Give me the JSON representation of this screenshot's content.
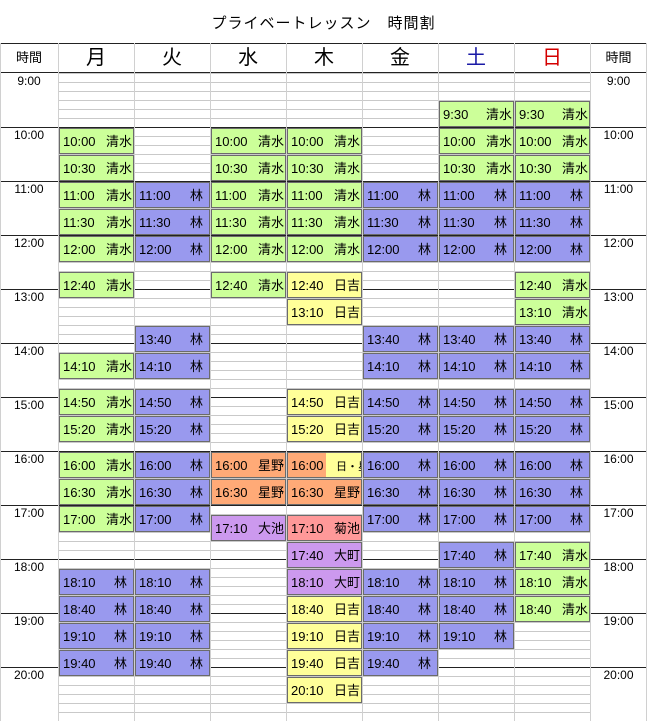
{
  "title": "プライベートレッスン　時間割",
  "time_header": "時間",
  "days": [
    {
      "label": "月",
      "color": "#000000"
    },
    {
      "label": "火",
      "color": "#000000"
    },
    {
      "label": "水",
      "color": "#000000"
    },
    {
      "label": "木",
      "color": "#000000"
    },
    {
      "label": "金",
      "color": "#000000"
    },
    {
      "label": "土",
      "color": "#1a1aa6"
    },
    {
      "label": "日",
      "color": "#d40000"
    }
  ],
  "hours": [
    "9:00",
    "10:00",
    "11:00",
    "12:00",
    "13:00",
    "14:00",
    "15:00",
    "16:00",
    "17:00",
    "18:00",
    "19:00",
    "20:00"
  ],
  "colors": {
    "green": "#ccff99",
    "blue": "#9999ee",
    "yellow": "#ffff99",
    "orange": "#ffaa77",
    "purple": "#cc99ee",
    "pink": "#ff9999"
  },
  "lessons": [
    {
      "day": 0,
      "time": "10:00",
      "teacher": "清水",
      "color": "green"
    },
    {
      "day": 0,
      "time": "10:30",
      "teacher": "清水",
      "color": "green"
    },
    {
      "day": 0,
      "time": "11:00",
      "teacher": "清水",
      "color": "green"
    },
    {
      "day": 0,
      "time": "11:30",
      "teacher": "清水",
      "color": "green"
    },
    {
      "day": 0,
      "time": "12:00",
      "teacher": "清水",
      "color": "green"
    },
    {
      "day": 0,
      "time": "12:40",
      "teacher": "清水",
      "color": "green"
    },
    {
      "day": 0,
      "time": "14:10",
      "teacher": "清水",
      "color": "green"
    },
    {
      "day": 0,
      "time": "14:50",
      "teacher": "清水",
      "color": "green"
    },
    {
      "day": 0,
      "time": "15:20",
      "teacher": "清水",
      "color": "green"
    },
    {
      "day": 0,
      "time": "16:00",
      "teacher": "清水",
      "color": "green"
    },
    {
      "day": 0,
      "time": "16:30",
      "teacher": "清水",
      "color": "green"
    },
    {
      "day": 0,
      "time": "17:00",
      "teacher": "清水",
      "color": "green"
    },
    {
      "day": 0,
      "time": "18:10",
      "teacher": "林",
      "color": "blue"
    },
    {
      "day": 0,
      "time": "18:40",
      "teacher": "林",
      "color": "blue"
    },
    {
      "day": 0,
      "time": "19:10",
      "teacher": "林",
      "color": "blue"
    },
    {
      "day": 0,
      "time": "19:40",
      "teacher": "林",
      "color": "blue"
    },
    {
      "day": 1,
      "time": "11:00",
      "teacher": "林",
      "color": "blue"
    },
    {
      "day": 1,
      "time": "11:30",
      "teacher": "林",
      "color": "blue"
    },
    {
      "day": 1,
      "time": "12:00",
      "teacher": "林",
      "color": "blue"
    },
    {
      "day": 1,
      "time": "13:40",
      "teacher": "林",
      "color": "blue"
    },
    {
      "day": 1,
      "time": "14:10",
      "teacher": "林",
      "color": "blue"
    },
    {
      "day": 1,
      "time": "14:50",
      "teacher": "林",
      "color": "blue"
    },
    {
      "day": 1,
      "time": "15:20",
      "teacher": "林",
      "color": "blue"
    },
    {
      "day": 1,
      "time": "16:00",
      "teacher": "林",
      "color": "blue"
    },
    {
      "day": 1,
      "time": "16:30",
      "teacher": "林",
      "color": "blue"
    },
    {
      "day": 1,
      "time": "17:00",
      "teacher": "林",
      "color": "blue"
    },
    {
      "day": 1,
      "time": "18:10",
      "teacher": "林",
      "color": "blue"
    },
    {
      "day": 1,
      "time": "18:40",
      "teacher": "林",
      "color": "blue"
    },
    {
      "day": 1,
      "time": "19:10",
      "teacher": "林",
      "color": "blue"
    },
    {
      "day": 1,
      "time": "19:40",
      "teacher": "林",
      "color": "blue"
    },
    {
      "day": 2,
      "time": "10:00",
      "teacher": "清水",
      "color": "green"
    },
    {
      "day": 2,
      "time": "10:30",
      "teacher": "清水",
      "color": "green"
    },
    {
      "day": 2,
      "time": "11:00",
      "teacher": "清水",
      "color": "green"
    },
    {
      "day": 2,
      "time": "11:30",
      "teacher": "清水",
      "color": "green"
    },
    {
      "day": 2,
      "time": "12:00",
      "teacher": "清水",
      "color": "green"
    },
    {
      "day": 2,
      "time": "12:40",
      "teacher": "清水",
      "color": "green"
    },
    {
      "day": 2,
      "time": "16:00",
      "teacher": "星野",
      "color": "orange"
    },
    {
      "day": 2,
      "time": "16:30",
      "teacher": "星野",
      "color": "orange"
    },
    {
      "day": 2,
      "time": "17:10",
      "teacher": "大池",
      "color": "purple"
    },
    {
      "day": 3,
      "time": "10:00",
      "teacher": "清水",
      "color": "green"
    },
    {
      "day": 3,
      "time": "10:30",
      "teacher": "清水",
      "color": "green"
    },
    {
      "day": 3,
      "time": "11:00",
      "teacher": "清水",
      "color": "green"
    },
    {
      "day": 3,
      "time": "11:30",
      "teacher": "清水",
      "color": "green"
    },
    {
      "day": 3,
      "time": "12:00",
      "teacher": "清水",
      "color": "green"
    },
    {
      "day": 3,
      "time": "12:40",
      "teacher": "日吉",
      "color": "yellow"
    },
    {
      "day": 3,
      "time": "13:10",
      "teacher": "日吉",
      "color": "yellow"
    },
    {
      "day": 3,
      "time": "14:50",
      "teacher": "日吉",
      "color": "yellow"
    },
    {
      "day": 3,
      "time": "15:20",
      "teacher": "日吉",
      "color": "yellow"
    },
    {
      "day": 3,
      "time": "16:00",
      "teacher": "日・星",
      "color": "split"
    },
    {
      "day": 3,
      "time": "16:30",
      "teacher": "星野",
      "color": "orange"
    },
    {
      "day": 3,
      "time": "17:10",
      "teacher": "菊池",
      "color": "pink"
    },
    {
      "day": 3,
      "time": "17:40",
      "teacher": "大町",
      "color": "purple"
    },
    {
      "day": 3,
      "time": "18:10",
      "teacher": "大町",
      "color": "purple"
    },
    {
      "day": 3,
      "time": "18:40",
      "teacher": "日吉",
      "color": "yellow"
    },
    {
      "day": 3,
      "time": "19:10",
      "teacher": "日吉",
      "color": "yellow"
    },
    {
      "day": 3,
      "time": "19:40",
      "teacher": "日吉",
      "color": "yellow"
    },
    {
      "day": 3,
      "time": "20:10",
      "teacher": "日吉",
      "color": "yellow"
    },
    {
      "day": 4,
      "time": "11:00",
      "teacher": "林",
      "color": "blue"
    },
    {
      "day": 4,
      "time": "11:30",
      "teacher": "林",
      "color": "blue"
    },
    {
      "day": 4,
      "time": "12:00",
      "teacher": "林",
      "color": "blue"
    },
    {
      "day": 4,
      "time": "13:40",
      "teacher": "林",
      "color": "blue"
    },
    {
      "day": 4,
      "time": "14:10",
      "teacher": "林",
      "color": "blue"
    },
    {
      "day": 4,
      "time": "14:50",
      "teacher": "林",
      "color": "blue"
    },
    {
      "day": 4,
      "time": "15:20",
      "teacher": "林",
      "color": "blue"
    },
    {
      "day": 4,
      "time": "16:00",
      "teacher": "林",
      "color": "blue"
    },
    {
      "day": 4,
      "time": "16:30",
      "teacher": "林",
      "color": "blue"
    },
    {
      "day": 4,
      "time": "17:00",
      "teacher": "林",
      "color": "blue"
    },
    {
      "day": 4,
      "time": "18:10",
      "teacher": "林",
      "color": "blue"
    },
    {
      "day": 4,
      "time": "18:40",
      "teacher": "林",
      "color": "blue"
    },
    {
      "day": 4,
      "time": "19:10",
      "teacher": "林",
      "color": "blue"
    },
    {
      "day": 4,
      "time": "19:40",
      "teacher": "林",
      "color": "blue"
    },
    {
      "day": 5,
      "time": "9:30",
      "teacher": "清水",
      "color": "green"
    },
    {
      "day": 5,
      "time": "10:00",
      "teacher": "清水",
      "color": "green"
    },
    {
      "day": 5,
      "time": "10:30",
      "teacher": "清水",
      "color": "green"
    },
    {
      "day": 5,
      "time": "11:00",
      "teacher": "林",
      "color": "blue"
    },
    {
      "day": 5,
      "time": "11:30",
      "teacher": "林",
      "color": "blue"
    },
    {
      "day": 5,
      "time": "12:00",
      "teacher": "林",
      "color": "blue"
    },
    {
      "day": 5,
      "time": "13:40",
      "teacher": "林",
      "color": "blue"
    },
    {
      "day": 5,
      "time": "14:10",
      "teacher": "林",
      "color": "blue"
    },
    {
      "day": 5,
      "time": "14:50",
      "teacher": "林",
      "color": "blue"
    },
    {
      "day": 5,
      "time": "15:20",
      "teacher": "林",
      "color": "blue"
    },
    {
      "day": 5,
      "time": "16:00",
      "teacher": "林",
      "color": "blue"
    },
    {
      "day": 5,
      "time": "16:30",
      "teacher": "林",
      "color": "blue"
    },
    {
      "day": 5,
      "time": "17:00",
      "teacher": "林",
      "color": "blue"
    },
    {
      "day": 5,
      "time": "17:40",
      "teacher": "林",
      "color": "blue"
    },
    {
      "day": 5,
      "time": "18:10",
      "teacher": "林",
      "color": "blue"
    },
    {
      "day": 5,
      "time": "18:40",
      "teacher": "林",
      "color": "blue"
    },
    {
      "day": 5,
      "time": "19:10",
      "teacher": "林",
      "color": "blue"
    },
    {
      "day": 6,
      "time": "9:30",
      "teacher": "清水",
      "color": "green"
    },
    {
      "day": 6,
      "time": "10:00",
      "teacher": "清水",
      "color": "green"
    },
    {
      "day": 6,
      "time": "10:30",
      "teacher": "清水",
      "color": "green"
    },
    {
      "day": 6,
      "time": "11:00",
      "teacher": "林",
      "color": "blue"
    },
    {
      "day": 6,
      "time": "11:30",
      "teacher": "林",
      "color": "blue"
    },
    {
      "day": 6,
      "time": "12:00",
      "teacher": "林",
      "color": "blue"
    },
    {
      "day": 6,
      "time": "12:40",
      "teacher": "清水",
      "color": "green"
    },
    {
      "day": 6,
      "time": "13:10",
      "teacher": "清水",
      "color": "green"
    },
    {
      "day": 6,
      "time": "13:40",
      "teacher": "林",
      "color": "blue"
    },
    {
      "day": 6,
      "time": "14:10",
      "teacher": "林",
      "color": "blue"
    },
    {
      "day": 6,
      "time": "14:50",
      "teacher": "林",
      "color": "blue"
    },
    {
      "day": 6,
      "time": "15:20",
      "teacher": "林",
      "color": "blue"
    },
    {
      "day": 6,
      "time": "16:00",
      "teacher": "林",
      "color": "blue"
    },
    {
      "day": 6,
      "time": "16:30",
      "teacher": "林",
      "color": "blue"
    },
    {
      "day": 6,
      "time": "17:00",
      "teacher": "林",
      "color": "blue"
    },
    {
      "day": 6,
      "time": "17:40",
      "teacher": "清水",
      "color": "green"
    },
    {
      "day": 6,
      "time": "18:10",
      "teacher": "清水",
      "color": "green"
    },
    {
      "day": 6,
      "time": "18:40",
      "teacher": "清水",
      "color": "green"
    }
  ]
}
